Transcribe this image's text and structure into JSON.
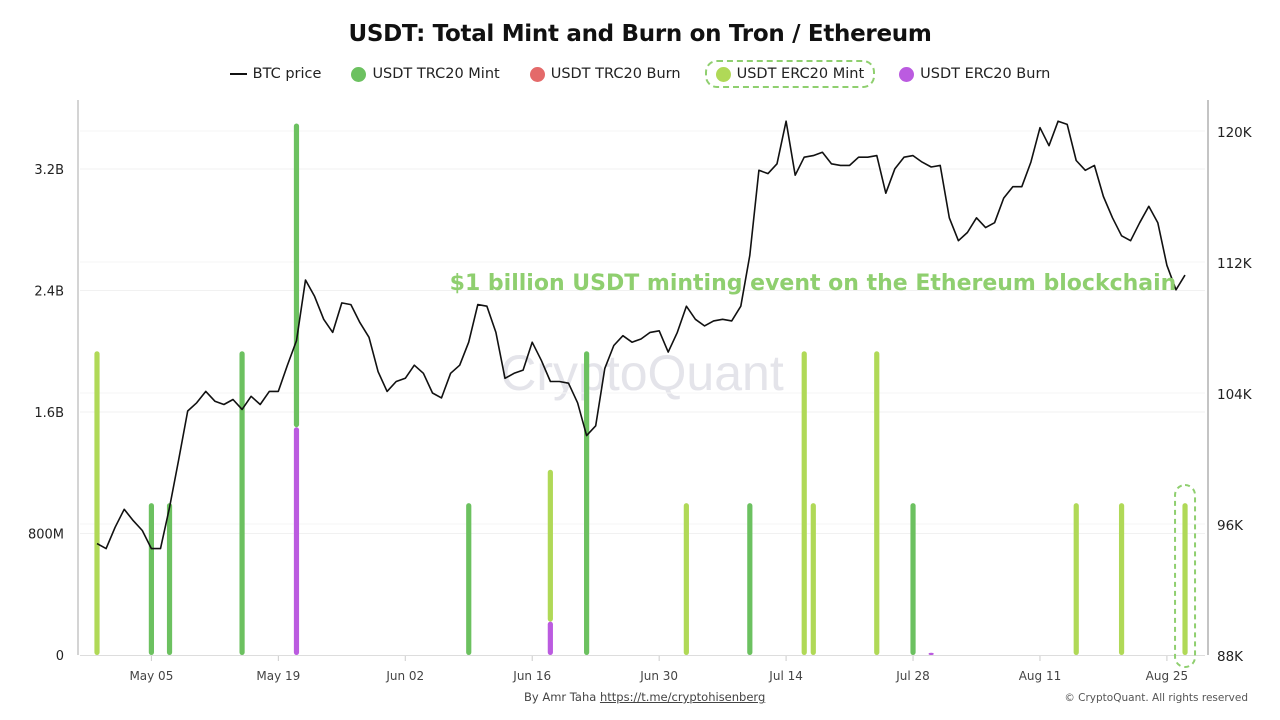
{
  "chart_data": {
    "type": "bar+line",
    "title": "USDT: Total Mint and Burn on Tron / Ethereum",
    "legend_position": "top-center",
    "grid": true,
    "y_left": {
      "ticks": [
        0,
        800000000,
        1600000000,
        2400000000,
        3200000000
      ],
      "tick_labels": [
        "0",
        "800M",
        "1.6B",
        "2.4B",
        "3.2B"
      ],
      "range": [
        0,
        3600000000
      ]
    },
    "y_right": {
      "ticks": [
        88000,
        96000,
        104000,
        112000,
        120000
      ],
      "tick_labels": [
        "88K",
        "96K",
        "104K",
        "112K",
        "120K"
      ],
      "range": [
        88000,
        121500
      ]
    },
    "x_ticks": [
      "May 05",
      "May 19",
      "Jun 02",
      "Jun 16",
      "Jun 30",
      "Jul 14",
      "Jul 28",
      "Aug 11",
      "Aug 25"
    ],
    "dates": [
      "Apr 29",
      "Apr 30",
      "May 01",
      "May 02",
      "May 03",
      "May 04",
      "May 05",
      "May 06",
      "May 07",
      "May 08",
      "May 09",
      "May 10",
      "May 11",
      "May 12",
      "May 13",
      "May 14",
      "May 15",
      "May 16",
      "May 17",
      "May 18",
      "May 19",
      "May 20",
      "May 21",
      "May 22",
      "May 23",
      "May 24",
      "May 25",
      "May 26",
      "May 27",
      "May 28",
      "May 29",
      "May 30",
      "May 31",
      "Jun 01",
      "Jun 02",
      "Jun 03",
      "Jun 04",
      "Jun 05",
      "Jun 06",
      "Jun 07",
      "Jun 08",
      "Jun 09",
      "Jun 10",
      "Jun 11",
      "Jun 12",
      "Jun 13",
      "Jun 14",
      "Jun 15",
      "Jun 16",
      "Jun 17",
      "Jun 18",
      "Jun 19",
      "Jun 20",
      "Jun 21",
      "Jun 22",
      "Jun 23",
      "Jun 24",
      "Jun 25",
      "Jun 26",
      "Jun 27",
      "Jun 28",
      "Jun 29",
      "Jun 30",
      "Jul 01",
      "Jul 02",
      "Jul 03",
      "Jul 04",
      "Jul 05",
      "Jul 06",
      "Jul 07",
      "Jul 08",
      "Jul 09",
      "Jul 10",
      "Jul 11",
      "Jul 12",
      "Jul 13",
      "Jul 14",
      "Jul 15",
      "Jul 16",
      "Jul 17",
      "Jul 18",
      "Jul 19",
      "Jul 20",
      "Jul 21",
      "Jul 22",
      "Jul 23",
      "Jul 24",
      "Jul 25",
      "Jul 26",
      "Jul 27",
      "Jul 28",
      "Jul 29",
      "Jul 30",
      "Jul 31",
      "Aug 01",
      "Aug 02",
      "Aug 03",
      "Aug 04",
      "Aug 05",
      "Aug 06",
      "Aug 07",
      "Aug 08",
      "Aug 09",
      "Aug 10",
      "Aug 11",
      "Aug 12",
      "Aug 13",
      "Aug 14",
      "Aug 15",
      "Aug 16",
      "Aug 17",
      "Aug 18",
      "Aug 19",
      "Aug 20",
      "Aug 21",
      "Aug 22",
      "Aug 23",
      "Aug 24",
      "Aug 25",
      "Aug 26",
      "Aug 27"
    ],
    "series": [
      {
        "name": "BTC price",
        "type": "line",
        "axis": "right",
        "color": "#111111",
        "values": [
          94800,
          94500,
          95800,
          96900,
          96200,
          95600,
          94500,
          94500,
          97000,
          99900,
          102900,
          103400,
          104100,
          103500,
          103300,
          103600,
          103000,
          103800,
          103300,
          104100,
          104100,
          105700,
          107200,
          110900,
          109900,
          108500,
          107700,
          109500,
          109400,
          108300,
          107400,
          105300,
          104100,
          104700,
          104900,
          105700,
          105200,
          104000,
          103700,
          105200,
          105700,
          107100,
          109400,
          109300,
          107700,
          104900,
          105200,
          105400,
          107100,
          106000,
          104700,
          104700,
          104600,
          103400,
          101400,
          102000,
          105500,
          106900,
          107500,
          107100,
          107300,
          107700,
          107800,
          106500,
          107700,
          109300,
          108500,
          108100,
          108400,
          108500,
          108400,
          109300,
          112400,
          117600,
          117400,
          118000,
          120600,
          117300,
          118400,
          118500,
          118700,
          118000,
          117900,
          117900,
          118400,
          118400,
          118500,
          116200,
          117700,
          118400,
          118500,
          118100,
          117800,
          117900,
          114700,
          113300,
          113800,
          114700,
          114100,
          114400,
          115900,
          116600,
          116600,
          118100,
          120200,
          119100,
          120600,
          120400,
          118200,
          117600,
          117900,
          116000,
          114700,
          113600,
          113300,
          114400,
          115400,
          114400,
          111800,
          110300,
          111200
        ]
      },
      {
        "name": "USDT TRC20 Mint",
        "type": "bar",
        "axis": "left",
        "color": "#6cc160",
        "points": [
          [
            "May 05",
            1000000000
          ],
          [
            "May 07",
            1000000000
          ],
          [
            "May 15",
            2000000000
          ],
          [
            "May 21",
            2000000000
          ],
          [
            "Jun 09",
            1000000000
          ],
          [
            "Jun 22",
            2000000000
          ],
          [
            "Jul 10",
            1000000000
          ],
          [
            "Jul 28",
            1000000000
          ]
        ]
      },
      {
        "name": "USDT TRC20 Burn",
        "type": "bar",
        "axis": "left",
        "color": "#e46a6a",
        "points": []
      },
      {
        "name": "USDT ERC20 Mint",
        "type": "bar",
        "axis": "left",
        "color": "#b0d957",
        "points": [
          [
            "Apr 29",
            2000000000
          ],
          [
            "Jun 18",
            1000000000
          ],
          [
            "Jul 03",
            1000000000
          ],
          [
            "Jul 16",
            2000000000
          ],
          [
            "Jul 17",
            1000000000
          ],
          [
            "Jul 24",
            2000000000
          ],
          [
            "Aug 15",
            1000000000
          ],
          [
            "Aug 20",
            1000000000
          ],
          [
            "Aug 27",
            1000000000
          ]
        ]
      },
      {
        "name": "USDT ERC20 Burn",
        "type": "bar",
        "axis": "left",
        "color": "#bb5be0",
        "points": [
          [
            "May 21",
            1500000000
          ],
          [
            "Jun 18",
            220000000
          ],
          [
            "Jul 30",
            15000000
          ]
        ]
      }
    ],
    "annotations": [
      {
        "text": "$1 billion USDT minting event on the Ethereum blockchain",
        "date": "Aug 27",
        "color": "#8fcf6f"
      }
    ],
    "highlighted_legend": "USDT ERC20 Mint"
  },
  "watermark": "CryptoQuant",
  "footer": {
    "by": "By Amr Taha",
    "link": "https://t.me/cryptohisenberg",
    "copyright": "© CryptoQuant. All rights reserved"
  }
}
